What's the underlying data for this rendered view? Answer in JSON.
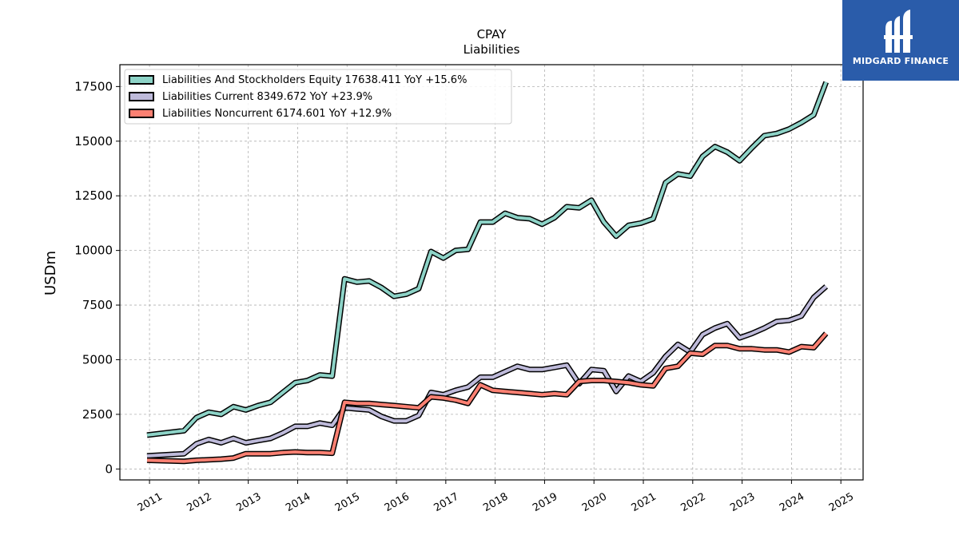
{
  "chart_data": {
    "type": "line",
    "title": "CPAY",
    "subtitle": "Liabilities",
    "xlabel": "",
    "ylabel": "USDm",
    "xlim": [
      2010.4,
      2025.45
    ],
    "ylim": [
      -500,
      18500
    ],
    "yticks": [
      0,
      2500,
      5000,
      7500,
      10000,
      12500,
      15000,
      17500
    ],
    "ytick_labels": [
      "0",
      "2500",
      "5000",
      "7500",
      "10000",
      "12500",
      "15000",
      "17500"
    ],
    "xticks": [
      2011,
      2012,
      2013,
      2014,
      2015,
      2016,
      2017,
      2018,
      2019,
      2020,
      2021,
      2022,
      2023,
      2024,
      2025
    ],
    "xtick_labels": [
      "2011",
      "2012",
      "2013",
      "2014",
      "2015",
      "2016",
      "2017",
      "2018",
      "2019",
      "2020",
      "2021",
      "2022",
      "2023",
      "2024",
      "2025"
    ],
    "grid": true,
    "legend_position": "top-left",
    "series": [
      {
        "name": "Liabilities And Stockholders Equity",
        "legend_label": "Liabilities And Stockholders Equity  17638.411 YoY +15.6%",
        "color": "#8dd3c7",
        "points": [
          [
            2010.95,
            1550
          ],
          [
            2011.7,
            1750
          ],
          [
            2011.95,
            2350
          ],
          [
            2012.2,
            2600
          ],
          [
            2012.45,
            2500
          ],
          [
            2012.7,
            2850
          ],
          [
            2012.95,
            2700
          ],
          [
            2013.2,
            2900
          ],
          [
            2013.45,
            3050
          ],
          [
            2013.7,
            3500
          ],
          [
            2013.95,
            3950
          ],
          [
            2014.2,
            4050
          ],
          [
            2014.45,
            4300
          ],
          [
            2014.7,
            4250
          ],
          [
            2014.95,
            8700
          ],
          [
            2015.2,
            8550
          ],
          [
            2015.45,
            8600
          ],
          [
            2015.7,
            8300
          ],
          [
            2015.95,
            7900
          ],
          [
            2016.2,
            8000
          ],
          [
            2016.45,
            8250
          ],
          [
            2016.7,
            9950
          ],
          [
            2016.95,
            9650
          ],
          [
            2017.2,
            10000
          ],
          [
            2017.45,
            10050
          ],
          [
            2017.7,
            11300
          ],
          [
            2017.95,
            11300
          ],
          [
            2018.2,
            11700
          ],
          [
            2018.45,
            11500
          ],
          [
            2018.7,
            11450
          ],
          [
            2018.95,
            11200
          ],
          [
            2019.2,
            11500
          ],
          [
            2019.45,
            12000
          ],
          [
            2019.7,
            11950
          ],
          [
            2019.95,
            12300
          ],
          [
            2020.2,
            11300
          ],
          [
            2020.45,
            10650
          ],
          [
            2020.7,
            11150
          ],
          [
            2020.95,
            11250
          ],
          [
            2021.2,
            11450
          ],
          [
            2021.45,
            13100
          ],
          [
            2021.7,
            13500
          ],
          [
            2021.95,
            13400
          ],
          [
            2022.2,
            14300
          ],
          [
            2022.45,
            14750
          ],
          [
            2022.7,
            14500
          ],
          [
            2022.95,
            14100
          ],
          [
            2023.2,
            14700
          ],
          [
            2023.45,
            15250
          ],
          [
            2023.7,
            15350
          ],
          [
            2023.95,
            15550
          ],
          [
            2024.2,
            15850
          ],
          [
            2024.45,
            16200
          ],
          [
            2024.7,
            17700
          ]
        ]
      },
      {
        "name": "Liabilities Current",
        "legend_label": "Liabilities Current  8349.672 YoY +23.9%",
        "color": "#bebada",
        "points": [
          [
            2010.95,
            600
          ],
          [
            2011.7,
            700
          ],
          [
            2011.95,
            1150
          ],
          [
            2012.2,
            1350
          ],
          [
            2012.45,
            1200
          ],
          [
            2012.7,
            1400
          ],
          [
            2012.95,
            1200
          ],
          [
            2013.2,
            1300
          ],
          [
            2013.45,
            1400
          ],
          [
            2013.7,
            1650
          ],
          [
            2013.95,
            1950
          ],
          [
            2014.2,
            1950
          ],
          [
            2014.45,
            2100
          ],
          [
            2014.7,
            2000
          ],
          [
            2014.95,
            2800
          ],
          [
            2015.2,
            2750
          ],
          [
            2015.45,
            2700
          ],
          [
            2015.7,
            2400
          ],
          [
            2015.95,
            2200
          ],
          [
            2016.2,
            2200
          ],
          [
            2016.45,
            2450
          ],
          [
            2016.7,
            3500
          ],
          [
            2016.95,
            3400
          ],
          [
            2017.2,
            3600
          ],
          [
            2017.45,
            3750
          ],
          [
            2017.7,
            4200
          ],
          [
            2017.95,
            4200
          ],
          [
            2018.2,
            4450
          ],
          [
            2018.45,
            4700
          ],
          [
            2018.7,
            4550
          ],
          [
            2018.95,
            4550
          ],
          [
            2019.2,
            4650
          ],
          [
            2019.45,
            4750
          ],
          [
            2019.7,
            3900
          ],
          [
            2019.95,
            4550
          ],
          [
            2020.2,
            4500
          ],
          [
            2020.45,
            3550
          ],
          [
            2020.7,
            4250
          ],
          [
            2020.95,
            4000
          ],
          [
            2021.2,
            4400
          ],
          [
            2021.45,
            5150
          ],
          [
            2021.7,
            5700
          ],
          [
            2021.95,
            5350
          ],
          [
            2022.2,
            6150
          ],
          [
            2022.45,
            6450
          ],
          [
            2022.7,
            6650
          ],
          [
            2022.95,
            6000
          ],
          [
            2023.2,
            6200
          ],
          [
            2023.45,
            6450
          ],
          [
            2023.7,
            6750
          ],
          [
            2023.95,
            6800
          ],
          [
            2024.2,
            7000
          ],
          [
            2024.45,
            7850
          ],
          [
            2024.7,
            8350
          ]
        ]
      },
      {
        "name": "Liabilities Noncurrent",
        "legend_label": "Liabilities Noncurrent  6174.601 YoY +12.9%",
        "color": "#fb8072",
        "points": [
          [
            2010.95,
            400
          ],
          [
            2011.7,
            350
          ],
          [
            2011.95,
            400
          ],
          [
            2012.2,
            420
          ],
          [
            2012.45,
            450
          ],
          [
            2012.7,
            500
          ],
          [
            2012.95,
            700
          ],
          [
            2013.2,
            700
          ],
          [
            2013.45,
            700
          ],
          [
            2013.7,
            750
          ],
          [
            2013.95,
            780
          ],
          [
            2014.2,
            750
          ],
          [
            2014.45,
            750
          ],
          [
            2014.7,
            720
          ],
          [
            2014.95,
            3050
          ],
          [
            2015.2,
            3000
          ],
          [
            2015.45,
            3000
          ],
          [
            2015.7,
            2950
          ],
          [
            2015.95,
            2900
          ],
          [
            2016.2,
            2850
          ],
          [
            2016.45,
            2800
          ],
          [
            2016.7,
            3300
          ],
          [
            2016.95,
            3250
          ],
          [
            2017.2,
            3150
          ],
          [
            2017.45,
            3000
          ],
          [
            2017.7,
            3850
          ],
          [
            2017.95,
            3600
          ],
          [
            2018.2,
            3550
          ],
          [
            2018.45,
            3500
          ],
          [
            2018.7,
            3450
          ],
          [
            2018.95,
            3400
          ],
          [
            2019.2,
            3450
          ],
          [
            2019.45,
            3400
          ],
          [
            2019.7,
            4000
          ],
          [
            2019.95,
            4050
          ],
          [
            2020.2,
            4050
          ],
          [
            2020.45,
            4000
          ],
          [
            2020.7,
            3950
          ],
          [
            2020.95,
            3850
          ],
          [
            2021.2,
            3800
          ],
          [
            2021.45,
            4600
          ],
          [
            2021.7,
            4700
          ],
          [
            2021.95,
            5300
          ],
          [
            2022.2,
            5250
          ],
          [
            2022.45,
            5650
          ],
          [
            2022.7,
            5650
          ],
          [
            2022.95,
            5500
          ],
          [
            2023.2,
            5500
          ],
          [
            2023.45,
            5450
          ],
          [
            2023.7,
            5450
          ],
          [
            2023.95,
            5350
          ],
          [
            2024.2,
            5600
          ],
          [
            2024.45,
            5550
          ],
          [
            2024.7,
            6200
          ]
        ]
      }
    ]
  },
  "logo": {
    "text": "MIDGARD FINANCE",
    "color": "#2a5caa",
    "icon": "midgard-logo-icon"
  }
}
